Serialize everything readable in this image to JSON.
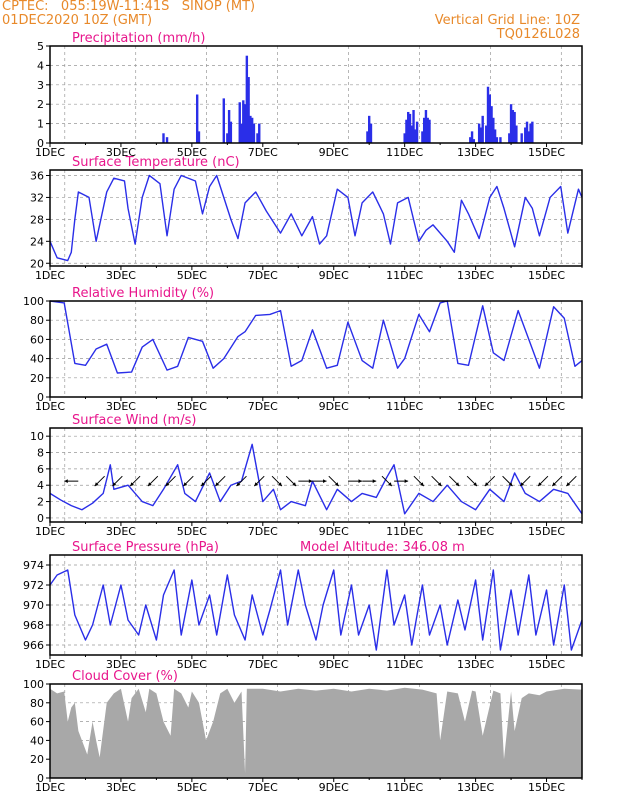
{
  "header": {
    "line1_left": "CPTEC:   055:19W-11:41S   SINOP (MT)",
    "line2_left": "01DEC2020 10Z (GMT)",
    "line2_right": "Vertical Grid Line: 10Z",
    "line3_right": "TQ0126L028",
    "model_altitude": "Model Altitude: 346.08 m"
  },
  "colors": {
    "header": "#e8892a",
    "title": "#e8168c",
    "line": "#2a2ee8",
    "bar": "#2a2ee8",
    "cloud": "#a8a8a8",
    "grid": "#999999"
  },
  "x_ticks": [
    "1DEC",
    "3DEC",
    "5DEC",
    "7DEC",
    "9DEC",
    "11DEC",
    "13DEC",
    "15DEC"
  ],
  "chart_data": [
    {
      "id": "precip",
      "type": "bar",
      "title": "Precipitation (mm/h)",
      "ylim": [
        0,
        5
      ],
      "yticks": [
        "0",
        "1",
        "2",
        "3",
        "4",
        "5"
      ],
      "x_unit": "day of December",
      "x": [
        4.2,
        4.3,
        5.15,
        5.2,
        5.9,
        6.0,
        6.05,
        6.1,
        6.35,
        6.4,
        6.45,
        6.5,
        6.55,
        6.6,
        6.65,
        6.7,
        6.75,
        6.85,
        6.9,
        9.95,
        10.0,
        10.05,
        11.0,
        11.05,
        11.1,
        11.15,
        11.2,
        11.25,
        11.3,
        11.35,
        11.5,
        11.55,
        11.6,
        11.65,
        11.7,
        12.85,
        12.9,
        12.95,
        13.1,
        13.15,
        13.2,
        13.3,
        13.35,
        13.4,
        13.45,
        13.5,
        13.55,
        13.6,
        13.7,
        13.95,
        14.0,
        14.05,
        14.1,
        14.15,
        14.3,
        14.4,
        14.45,
        14.5,
        14.55,
        14.6
      ],
      "values": [
        0.5,
        0.3,
        2.5,
        0.6,
        2.3,
        0.5,
        1.7,
        1.1,
        2.1,
        1.0,
        2.2,
        2.0,
        4.5,
        3.4,
        1.4,
        1.3,
        1.0,
        0.5,
        1.0,
        0.6,
        1.4,
        1.0,
        0.5,
        1.2,
        1.6,
        1.5,
        0.9,
        1.7,
        0.7,
        1.1,
        0.6,
        1.3,
        1.7,
        1.3,
        1.2,
        0.3,
        0.6,
        0.2,
        1.0,
        0.8,
        1.4,
        0.9,
        2.9,
        2.5,
        1.9,
        1.3,
        0.7,
        0.3,
        0.3,
        0.5,
        2.0,
        1.7,
        1.6,
        0.9,
        0.5,
        0.8,
        1.1,
        0.6,
        1.0,
        1.1
      ]
    },
    {
      "id": "temp",
      "type": "line",
      "title": "Surface Temperature (nC)",
      "ylim": [
        19.5,
        37
      ],
      "yticks": [
        "20",
        "24",
        "28",
        "32",
        "36"
      ],
      "ytick_values": [
        20,
        24,
        28,
        32,
        36
      ],
      "x": [
        1.0,
        1.2,
        1.5,
        1.6,
        1.7,
        1.8,
        2.1,
        2.3,
        2.6,
        2.8,
        3.1,
        3.2,
        3.4,
        3.6,
        3.8,
        4.1,
        4.3,
        4.5,
        4.7,
        5.1,
        5.3,
        5.5,
        5.7,
        6.1,
        6.3,
        6.5,
        6.8,
        7.1,
        7.5,
        7.8,
        8.1,
        8.4,
        8.6,
        8.8,
        9.1,
        9.4,
        9.6,
        9.8,
        10.1,
        10.4,
        10.6,
        10.8,
        11.1,
        11.4,
        11.6,
        11.8,
        12.2,
        12.4,
        12.6,
        12.8,
        13.1,
        13.4,
        13.6,
        13.8,
        14.1,
        14.4,
        14.6,
        14.8,
        15.1,
        15.4,
        15.6,
        15.9,
        16.0
      ],
      "values": [
        24.0,
        21.0,
        20.5,
        22.0,
        28.0,
        33.0,
        32.0,
        24.0,
        33.0,
        35.5,
        35.0,
        30.0,
        23.5,
        32.0,
        36.0,
        34.5,
        25.0,
        33.5,
        36.0,
        35.0,
        29.0,
        34.0,
        36.0,
        28.0,
        24.5,
        31.0,
        33.0,
        29.5,
        25.5,
        29.0,
        25.0,
        28.5,
        23.5,
        25.0,
        33.5,
        32.0,
        25.0,
        31.0,
        33.0,
        29.0,
        23.5,
        31.0,
        32.0,
        24.0,
        26.0,
        27.0,
        24.0,
        22.0,
        31.5,
        29.0,
        24.5,
        32.0,
        34.0,
        30.0,
        23.0,
        32.0,
        30.0,
        25.0,
        32.0,
        34.0,
        25.5,
        33.5,
        32.0
      ]
    },
    {
      "id": "rh",
      "type": "line",
      "title": "Relative Humidity (%)",
      "ylim": [
        0,
        100
      ],
      "yticks": [
        "0",
        "20",
        "40",
        "60",
        "80",
        "100"
      ],
      "ytick_values": [
        0,
        20,
        40,
        60,
        80,
        100
      ],
      "x": [
        1.0,
        1.4,
        1.7,
        2.0,
        2.3,
        2.6,
        2.9,
        3.3,
        3.6,
        3.9,
        4.3,
        4.6,
        4.9,
        5.3,
        5.6,
        5.9,
        6.3,
        6.5,
        6.8,
        7.2,
        7.5,
        7.8,
        8.1,
        8.4,
        8.8,
        9.1,
        9.4,
        9.8,
        10.1,
        10.4,
        10.8,
        11.0,
        11.4,
        11.7,
        12.0,
        12.2,
        12.5,
        12.8,
        13.2,
        13.5,
        13.8,
        14.2,
        14.5,
        14.8,
        15.2,
        15.5,
        15.8,
        16.0
      ],
      "values": [
        100,
        98,
        35,
        33,
        50,
        55,
        25,
        26,
        52,
        60,
        28,
        32,
        62,
        58,
        30,
        40,
        63,
        68,
        85,
        86,
        90,
        32,
        38,
        70,
        30,
        33,
        78,
        38,
        30,
        80,
        30,
        40,
        86,
        68,
        98,
        100,
        35,
        33,
        95,
        46,
        38,
        90,
        60,
        30,
        94,
        82,
        32,
        38
      ]
    },
    {
      "id": "wind",
      "type": "line",
      "title": "Surface Wind (m/s)",
      "ylim": [
        -0.5,
        11
      ],
      "yticks": [
        "0",
        "2",
        "4",
        "6",
        "8",
        "10"
      ],
      "ytick_values": [
        0,
        2,
        4,
        6,
        8,
        10
      ],
      "x": [
        1.0,
        1.3,
        1.6,
        1.9,
        2.2,
        2.5,
        2.7,
        2.8,
        3.2,
        3.6,
        3.9,
        4.2,
        4.6,
        4.8,
        5.1,
        5.5,
        5.8,
        6.1,
        6.4,
        6.7,
        7.0,
        7.3,
        7.5,
        7.8,
        8.2,
        8.4,
        8.8,
        9.1,
        9.5,
        9.8,
        10.2,
        10.5,
        10.7,
        11.0,
        11.4,
        11.8,
        12.2,
        12.6,
        13.0,
        13.4,
        13.8,
        14.1,
        14.4,
        14.8,
        15.2,
        15.6,
        16.0
      ],
      "values": [
        3.0,
        2.2,
        1.5,
        1.0,
        1.8,
        3.0,
        6.5,
        3.5,
        4.0,
        2.0,
        1.5,
        3.5,
        6.5,
        3.0,
        2.0,
        5.5,
        2.0,
        4.0,
        4.5,
        9.0,
        2.0,
        3.5,
        1.0,
        2.0,
        1.5,
        4.5,
        1.0,
        3.5,
        2.0,
        3.0,
        2.5,
        5.0,
        6.5,
        0.5,
        3.0,
        2.0,
        4.0,
        2.0,
        1.0,
        3.5,
        2.0,
        5.5,
        3.0,
        2.0,
        3.5,
        3.0,
        0.5
      ],
      "arrows": {
        "x": [
          1.6,
          2.4,
          2.9,
          3.4,
          3.9,
          4.4,
          4.9,
          5.4,
          5.8,
          6.4,
          6.9,
          7.4,
          7.8,
          8.2,
          8.6,
          9.0,
          9.6,
          10.0,
          10.5,
          10.9,
          11.4,
          11.9,
          12.4,
          12.9,
          13.4,
          13.9,
          14.4,
          14.9,
          15.3,
          15.7
        ],
        "dir_deg": [
          270,
          225,
          225,
          225,
          225,
          225,
          225,
          225,
          225,
          225,
          225,
          135,
          135,
          90,
          90,
          135,
          90,
          90,
          135,
          90,
          135,
          135,
          135,
          135,
          225,
          135,
          225,
          225,
          225,
          225
        ]
      }
    },
    {
      "id": "pressure",
      "type": "line",
      "title": "Surface Pressure (hPa)",
      "ylim": [
        965,
        975
      ],
      "yticks": [
        "966",
        "968",
        "970",
        "972",
        "974"
      ],
      "ytick_values": [
        966,
        968,
        970,
        972,
        974
      ],
      "x": [
        1.0,
        1.2,
        1.5,
        1.7,
        2.0,
        2.2,
        2.5,
        2.7,
        3.0,
        3.2,
        3.5,
        3.7,
        4.0,
        4.2,
        4.5,
        4.7,
        5.0,
        5.2,
        5.5,
        5.7,
        6.0,
        6.2,
        6.5,
        6.7,
        7.0,
        7.2,
        7.5,
        7.7,
        8.0,
        8.2,
        8.5,
        8.7,
        9.0,
        9.2,
        9.5,
        9.7,
        10.0,
        10.2,
        10.5,
        10.7,
        11.0,
        11.2,
        11.5,
        11.7,
        12.0,
        12.2,
        12.5,
        12.7,
        13.0,
        13.2,
        13.5,
        13.7,
        14.0,
        14.2,
        14.5,
        14.7,
        15.0,
        15.2,
        15.5,
        15.7,
        16.0
      ],
      "values": [
        972.0,
        973.0,
        973.5,
        969.0,
        966.5,
        968.0,
        972.0,
        968.0,
        972.0,
        968.5,
        967.0,
        970.0,
        966.5,
        971.0,
        973.5,
        967.0,
        972.5,
        968.0,
        971.0,
        967.0,
        973.0,
        969.0,
        966.5,
        971.0,
        967.0,
        969.5,
        973.5,
        968.0,
        973.5,
        970.0,
        966.5,
        970.0,
        973.5,
        967.0,
        972.0,
        967.0,
        970.0,
        965.5,
        973.5,
        968.0,
        971.0,
        966.0,
        972.0,
        967.0,
        970.0,
        966.0,
        970.5,
        967.5,
        972.5,
        966.5,
        973.5,
        965.5,
        971.5,
        967.0,
        973.0,
        967.0,
        971.5,
        966.0,
        972.0,
        965.5,
        968.5
      ]
    },
    {
      "id": "cloud",
      "type": "area",
      "title": "Cloud Cover (%)",
      "ylim": [
        0,
        100
      ],
      "yticks": [
        "0",
        "20",
        "40",
        "60",
        "80",
        "100"
      ],
      "ytick_values": [
        0,
        20,
        40,
        60,
        80,
        100
      ],
      "x": [
        1.0,
        1.2,
        1.4,
        1.5,
        1.6,
        1.7,
        1.8,
        2.0,
        2.05,
        2.2,
        2.3,
        2.4,
        2.6,
        2.8,
        3.0,
        3.2,
        3.3,
        3.5,
        3.7,
        3.8,
        4.0,
        4.2,
        4.4,
        4.5,
        4.7,
        4.9,
        5.0,
        5.2,
        5.4,
        5.6,
        5.8,
        6.0,
        6.2,
        6.4,
        6.5,
        6.55,
        6.6,
        7.0,
        7.5,
        8.0,
        8.5,
        9.0,
        9.5,
        10.0,
        10.5,
        11.0,
        11.5,
        11.9,
        12.0,
        12.2,
        12.5,
        12.7,
        12.9,
        13.0,
        13.2,
        13.5,
        13.7,
        13.8,
        14.0,
        14.1,
        14.3,
        14.5,
        14.8,
        15.0,
        15.5,
        16.0
      ],
      "values": [
        95,
        90,
        92,
        60,
        75,
        80,
        50,
        30,
        25,
        60,
        40,
        22,
        80,
        90,
        95,
        60,
        85,
        95,
        70,
        95,
        90,
        60,
        45,
        95,
        90,
        75,
        92,
        80,
        40,
        60,
        90,
        95,
        80,
        92,
        5,
        95,
        95,
        95,
        92,
        95,
        93,
        95,
        92,
        95,
        93,
        96,
        94,
        90,
        40,
        92,
        90,
        60,
        93,
        92,
        45,
        93,
        90,
        20,
        92,
        50,
        85,
        90,
        88,
        92,
        95,
        94
      ]
    }
  ]
}
